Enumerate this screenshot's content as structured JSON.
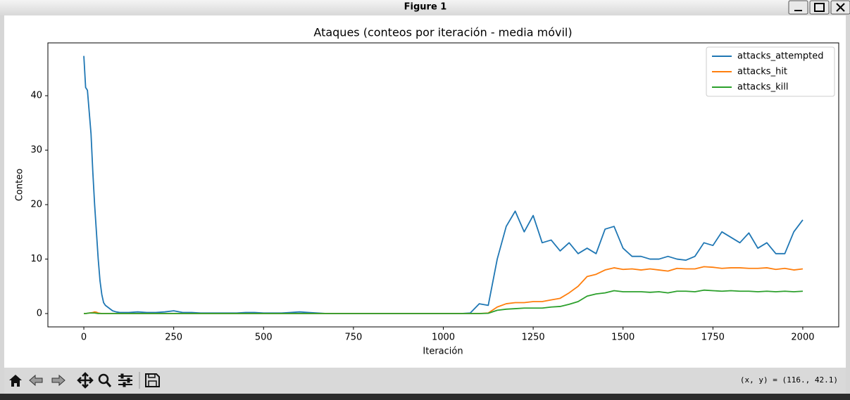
{
  "window": {
    "title": "Figure 1"
  },
  "chart_data": {
    "type": "line",
    "title": "Ataques (conteos por iteración - media móvil)",
    "xlabel": "Iteración",
    "ylabel": "Conteo",
    "x": [
      0,
      5,
      10,
      15,
      20,
      25,
      30,
      35,
      40,
      45,
      50,
      55,
      60,
      70,
      80,
      90,
      100,
      125,
      150,
      175,
      200,
      225,
      250,
      275,
      300,
      325,
      350,
      375,
      400,
      425,
      450,
      475,
      500,
      525,
      550,
      575,
      600,
      625,
      650,
      675,
      700,
      725,
      750,
      775,
      800,
      825,
      850,
      875,
      900,
      925,
      950,
      975,
      1000,
      1025,
      1050,
      1075,
      1100,
      1125,
      1150,
      1175,
      1200,
      1225,
      1250,
      1275,
      1300,
      1325,
      1350,
      1375,
      1400,
      1425,
      1450,
      1475,
      1500,
      1525,
      1550,
      1575,
      1600,
      1625,
      1650,
      1675,
      1700,
      1725,
      1750,
      1775,
      1800,
      1825,
      1850,
      1875,
      1900,
      1925,
      1950,
      1975,
      2000
    ],
    "series": [
      {
        "name": "attacks_attempted",
        "color": "#1f77b4",
        "values": [
          47.3,
          41.5,
          41,
          37,
          33,
          26,
          20,
          15,
          10,
          6,
          3.5,
          2,
          1.5,
          1,
          0.5,
          0.3,
          0.2,
          0.2,
          0.3,
          0.2,
          0.2,
          0.3,
          0.5,
          0.2,
          0.2,
          0.1,
          0.1,
          0.1,
          0.1,
          0.1,
          0.2,
          0.2,
          0.1,
          0.1,
          0.1,
          0.2,
          0.3,
          0.2,
          0.1,
          0,
          0,
          0,
          0,
          0,
          0,
          0,
          0,
          0,
          0,
          0,
          0,
          0,
          0,
          0,
          0,
          0.1,
          1.8,
          1.5,
          10,
          16,
          18.8,
          15,
          18,
          13,
          13.5,
          11.5,
          13,
          11,
          12,
          11,
          15.5,
          16,
          12,
          10.5,
          10.5,
          10,
          10,
          10.5,
          10,
          9.8,
          10.5,
          13,
          12.5,
          15,
          14,
          13,
          14.8,
          12,
          13,
          11,
          11,
          15,
          17.2
        ]
      },
      {
        "name": "attacks_hit",
        "color": "#ff7f0e",
        "values": [
          0,
          0,
          0.05,
          0.1,
          0.15,
          0.2,
          0.3,
          0.25,
          0.1,
          0.05,
          0,
          0,
          0,
          0,
          0,
          0,
          0,
          0,
          0,
          0,
          0,
          0,
          0,
          0,
          0,
          0,
          0,
          0,
          0,
          0,
          0,
          0,
          0,
          0,
          0,
          0,
          0,
          0,
          0,
          0,
          0,
          0,
          0,
          0,
          0,
          0,
          0,
          0,
          0,
          0,
          0,
          0,
          0,
          0,
          0,
          0,
          0,
          0.1,
          1.2,
          1.8,
          2,
          2,
          2.2,
          2.2,
          2.5,
          2.8,
          3.8,
          5,
          6.8,
          7.2,
          8,
          8.4,
          8.1,
          8.2,
          8,
          8.2,
          8,
          7.8,
          8.3,
          8.2,
          8.2,
          8.6,
          8.5,
          8.3,
          8.4,
          8.4,
          8.3,
          8.3,
          8.4,
          8.1,
          8.3,
          8,
          8.2
        ]
      },
      {
        "name": "attacks_kill",
        "color": "#2ca02c",
        "values": [
          0,
          0,
          0.05,
          0.1,
          0.1,
          0.1,
          0.1,
          0.05,
          0,
          0,
          0,
          0,
          0,
          0,
          0,
          0,
          0,
          0,
          0,
          0,
          0,
          0,
          0,
          0,
          0,
          0,
          0,
          0,
          0,
          0,
          0,
          0,
          0,
          0,
          0,
          0,
          0,
          0,
          0,
          0,
          0,
          0,
          0,
          0,
          0,
          0,
          0,
          0,
          0,
          0,
          0,
          0,
          0,
          0,
          0,
          0,
          0,
          0.05,
          0.6,
          0.8,
          0.9,
          1,
          1,
          1,
          1.2,
          1.3,
          1.7,
          2.2,
          3.2,
          3.6,
          3.8,
          4.2,
          4,
          4,
          4,
          3.9,
          4,
          3.8,
          4.1,
          4.1,
          4,
          4.3,
          4.2,
          4.1,
          4.2,
          4.1,
          4.1,
          4,
          4.1,
          4,
          4.1,
          4,
          4.1
        ]
      }
    ],
    "xlim": [
      -100,
      2100
    ],
    "xticks": [
      0,
      250,
      500,
      750,
      1000,
      1250,
      1500,
      1750,
      2000
    ],
    "ylim": [
      -2.45,
      49.7
    ],
    "yticks": [
      0,
      10,
      20,
      30,
      40
    ],
    "legend": "upper right",
    "grid": false
  },
  "toolbar": {
    "coords": "(x, y) = (116., 42.1)"
  }
}
